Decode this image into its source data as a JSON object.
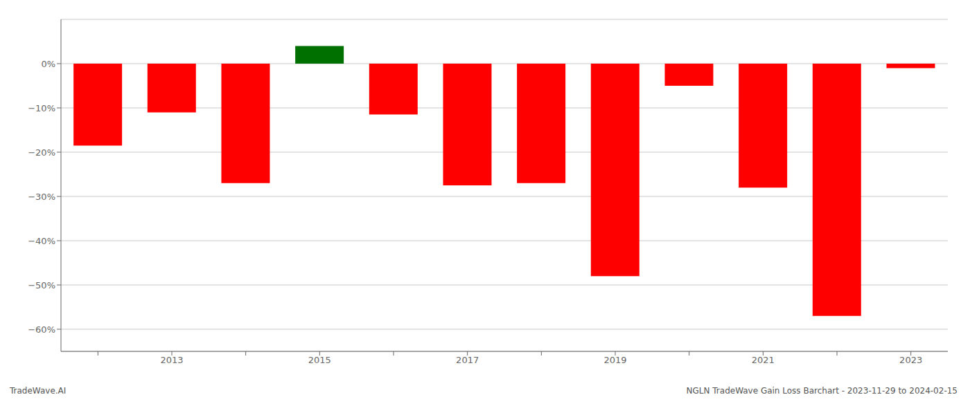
{
  "chart_data": {
    "type": "bar",
    "categories": [
      null,
      "2013",
      null,
      "2015",
      null,
      "2017",
      null,
      "2019",
      null,
      "2021",
      null,
      "2023"
    ],
    "values": [
      -18.5,
      -11.0,
      -27.0,
      4.0,
      -11.5,
      -27.5,
      -27.0,
      -48.0,
      -5.0,
      -28.0,
      -57.0,
      -1.0
    ],
    "colors": [
      "#ff0000",
      "#ff0000",
      "#ff0000",
      "#007000",
      "#ff0000",
      "#ff0000",
      "#ff0000",
      "#ff0000",
      "#ff0000",
      "#ff0000",
      "#ff0000",
      "#ff0000"
    ],
    "ylim": [
      -65,
      10
    ],
    "yticks": [
      {
        "value": 0,
        "label": "0%"
      },
      {
        "value": -10,
        "label": "−10%"
      },
      {
        "value": -20,
        "label": "−20%"
      },
      {
        "value": -30,
        "label": "−30%"
      },
      {
        "value": -40,
        "label": "−40%"
      },
      {
        "value": -50,
        "label": "−50%"
      },
      {
        "value": -60,
        "label": "−60%"
      }
    ],
    "grid": true,
    "annotations": [
      "TradeWave.AI",
      "NGLN TradeWave Gain Loss Barchart - 2023-11-29 to 2024-02-15"
    ]
  }
}
